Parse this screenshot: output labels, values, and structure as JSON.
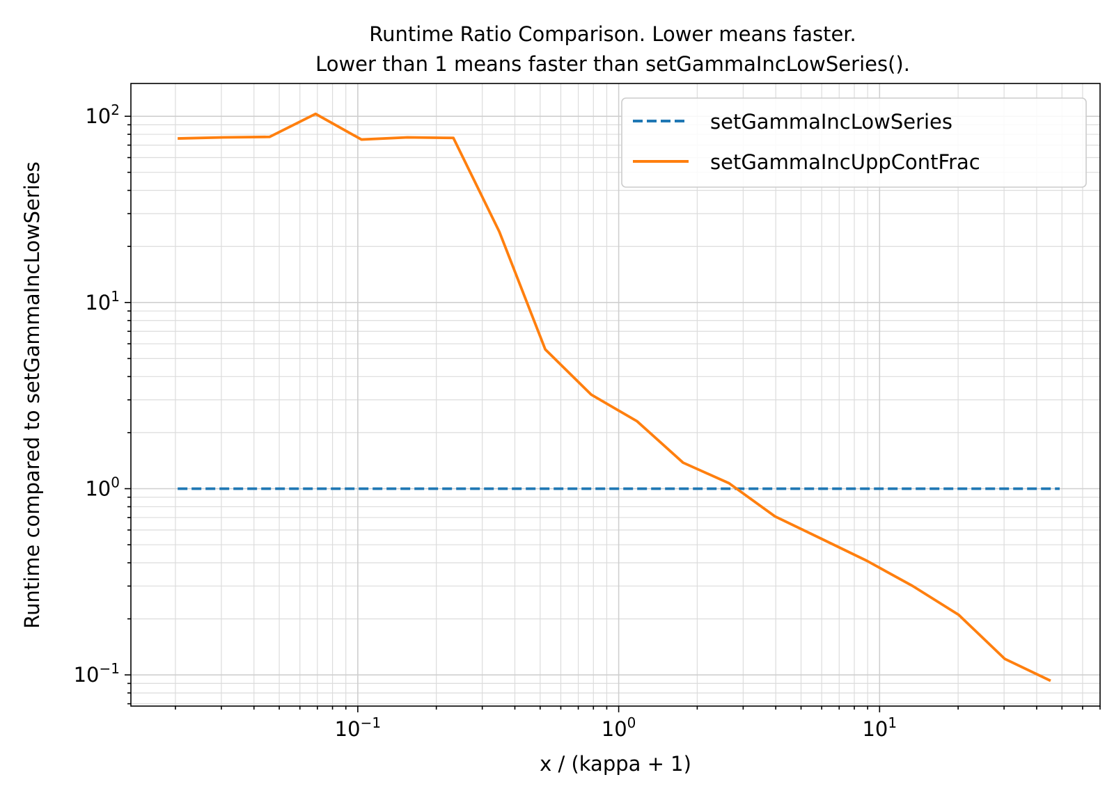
{
  "chart_data": {
    "type": "line",
    "title_lines": [
      "Runtime Ratio Comparison. Lower means faster.",
      "Lower than 1 means faster than setGammaIncLowSeries()."
    ],
    "xlabel": "x / (kappa + 1)",
    "ylabel": "Runtime compared to setGammaIncLowSeries",
    "xscale": "log",
    "yscale": "log",
    "xlim": [
      0.0135,
      70
    ],
    "ylim": [
      0.068,
      150
    ],
    "x_ticks": [
      {
        "value": 0.1,
        "base": "10",
        "exp": "−1"
      },
      {
        "value": 1,
        "base": "10",
        "exp": "0"
      },
      {
        "value": 10,
        "base": "10",
        "exp": "1"
      }
    ],
    "y_ticks": [
      {
        "value": 0.1,
        "base": "10",
        "exp": "−1"
      },
      {
        "value": 1,
        "base": "10",
        "exp": "0"
      },
      {
        "value": 10,
        "base": "10",
        "exp": "1"
      },
      {
        "value": 100,
        "base": "10",
        "exp": "2"
      }
    ],
    "grid": true,
    "legend_position": "top-right",
    "series": [
      {
        "name": "setGammaIncLowSeries",
        "color": "#1f77b4",
        "style": "dashed",
        "x": [
          0.0204,
          49.0
        ],
        "y": [
          1.0,
          1.0
        ]
      },
      {
        "name": "setGammaIncUppContFrac",
        "color": "#ff7f0e",
        "style": "solid",
        "x": [
          0.0204,
          0.0306,
          0.0459,
          0.0689,
          0.1033,
          0.155,
          0.2325,
          0.3487,
          0.523,
          0.7846,
          1.177,
          1.765,
          2.648,
          3.972,
          5.957,
          8.936,
          13.4,
          20.11,
          30.16,
          45.24
        ],
        "y": [
          76,
          77,
          77.5,
          103,
          75,
          77,
          76.5,
          24,
          5.6,
          3.2,
          2.3,
          1.38,
          1.07,
          0.71,
          0.54,
          0.41,
          0.3,
          0.21,
          0.122,
          0.093
        ]
      }
    ]
  }
}
